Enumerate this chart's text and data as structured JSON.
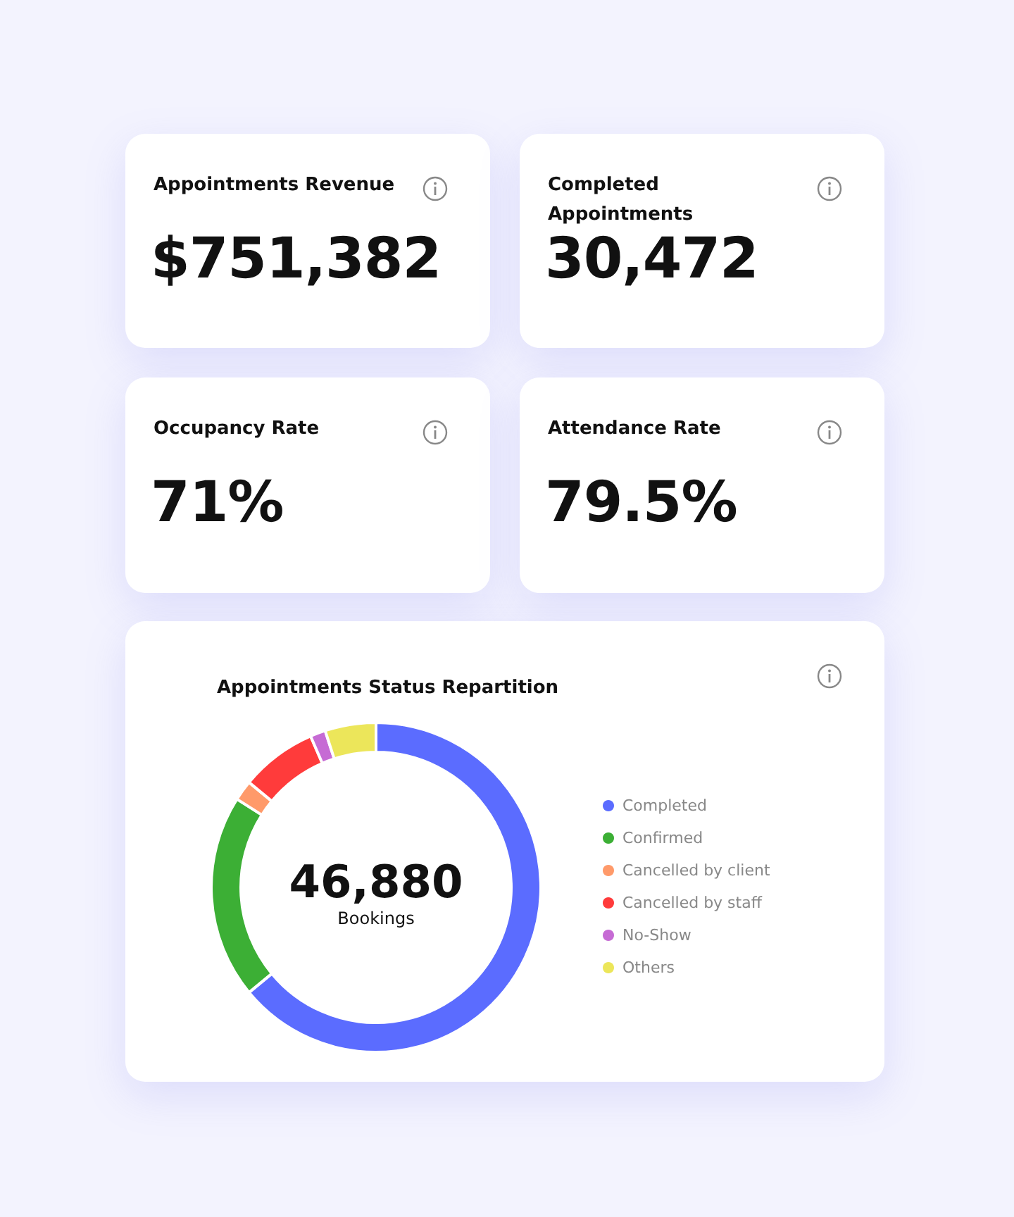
{
  "chart_data": [
    {
      "type": "other",
      "title": "Appointments Revenue",
      "annotations": [
        "$751,382"
      ]
    },
    {
      "type": "other",
      "title": "Completed Appointments",
      "annotations": [
        "30,472"
      ]
    },
    {
      "type": "other",
      "title": "Occupancy Rate",
      "annotations": [
        "71%"
      ]
    },
    {
      "type": "other",
      "title": "Attendance Rate",
      "annotations": [
        "79.5%"
      ]
    },
    {
      "type": "donut",
      "title": "Appointments Status Repartition",
      "categories": [
        "Completed",
        "Confirmed",
        "Cancelled by client",
        "Cancelled by staff",
        "No-Show",
        "Others"
      ],
      "values": [
        64,
        20,
        2,
        7.5,
        1.5,
        5
      ],
      "colors": [
        "#5b6cff",
        "#3caf35",
        "#ff9a6a",
        "#ff3b3b",
        "#c66bd4",
        "#ece65a"
      ],
      "annotations": [
        "46,880",
        "Bookings"
      ],
      "legend": "right"
    }
  ]
}
